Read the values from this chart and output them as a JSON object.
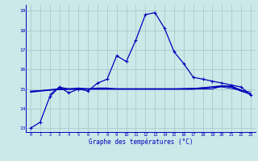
{
  "xlabel": "Graphe des températures (°C)",
  "background_color": "#cce8e8",
  "grid_color": "#aacccc",
  "line_color": "#0000bb",
  "xlim": [
    -0.5,
    23.5
  ],
  "ylim": [
    12.8,
    19.3
  ],
  "yticks": [
    13,
    14,
    15,
    16,
    17,
    18,
    19
  ],
  "xticks": [
    0,
    1,
    2,
    3,
    4,
    5,
    6,
    7,
    8,
    9,
    10,
    11,
    12,
    13,
    14,
    15,
    16,
    17,
    18,
    19,
    20,
    21,
    22,
    23
  ],
  "series1_x": [
    0,
    1,
    2,
    3,
    4,
    5,
    6,
    7,
    8,
    9,
    10,
    11,
    12,
    13,
    14,
    15,
    16,
    17,
    18,
    19,
    20,
    21,
    22,
    23
  ],
  "series1_y": [
    13.0,
    13.3,
    14.6,
    15.1,
    14.8,
    15.0,
    14.9,
    15.3,
    15.5,
    16.7,
    16.4,
    17.5,
    18.8,
    18.9,
    18.1,
    16.9,
    16.3,
    15.6,
    15.5,
    15.4,
    15.3,
    15.2,
    15.1,
    14.7
  ],
  "series2_x": [
    2,
    3,
    4,
    5,
    6,
    7,
    8,
    9,
    10,
    11,
    12,
    13,
    14,
    15,
    16,
    17,
    18,
    19,
    20,
    21,
    22,
    23
  ],
  "series2_y": [
    14.7,
    15.1,
    15.0,
    15.05,
    15.0,
    15.05,
    15.05,
    15.0,
    15.0,
    15.0,
    15.0,
    15.0,
    15.0,
    15.0,
    15.0,
    15.0,
    15.0,
    15.0,
    15.15,
    15.15,
    14.95,
    14.7
  ],
  "series3_x": [
    0,
    1,
    2,
    3,
    4,
    5,
    6,
    7,
    8,
    9,
    10,
    11,
    12,
    13,
    14,
    15,
    16,
    17,
    18,
    19,
    20,
    21,
    22,
    23
  ],
  "series3_y": [
    14.85,
    14.9,
    14.95,
    15.0,
    15.0,
    15.0,
    15.0,
    15.0,
    15.0,
    15.0,
    15.0,
    15.0,
    15.0,
    15.0,
    15.0,
    15.0,
    15.0,
    15.0,
    15.05,
    15.1,
    15.15,
    15.1,
    14.9,
    14.75
  ],
  "series4_x": [
    0,
    5,
    10,
    15,
    20,
    23
  ],
  "series4_y": [
    14.9,
    15.0,
    15.0,
    15.0,
    15.1,
    14.85
  ]
}
